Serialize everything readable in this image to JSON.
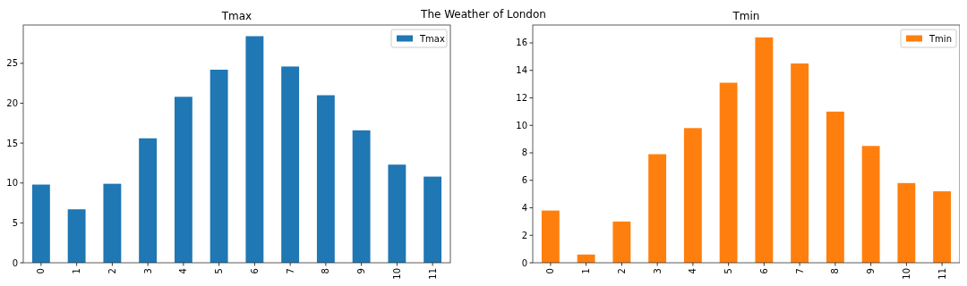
{
  "chart_data": [
    {
      "type": "bar",
      "title": "Tmax",
      "annotations": [
        "The Weather of London"
      ],
      "categories": [
        "0",
        "1",
        "2",
        "3",
        "4",
        "5",
        "6",
        "7",
        "8",
        "9",
        "10",
        "11"
      ],
      "series": [
        {
          "name": "Tmax",
          "color": "#1f77b4",
          "values": [
            9.8,
            6.7,
            9.9,
            15.6,
            20.8,
            24.2,
            28.4,
            24.6,
            21.0,
            16.6,
            12.3,
            10.8
          ]
        }
      ],
      "ylim": [
        0,
        29.8
      ],
      "yticks": [
        0,
        5,
        10,
        15,
        20,
        25
      ],
      "legend": "top right"
    },
    {
      "type": "bar",
      "title": "Tmin",
      "categories": [
        "0",
        "1",
        "2",
        "3",
        "4",
        "5",
        "6",
        "7",
        "8",
        "9",
        "10",
        "11"
      ],
      "series": [
        {
          "name": "Tmin",
          "color": "#ff7f0e",
          "values": [
            3.8,
            0.6,
            3.0,
            7.9,
            9.8,
            13.1,
            16.4,
            14.5,
            11.0,
            8.5,
            5.8,
            5.2
          ]
        }
      ],
      "ylim": [
        0,
        17.3
      ],
      "yticks": [
        0,
        2,
        4,
        6,
        8,
        10,
        12,
        14,
        16
      ],
      "legend": "top right"
    }
  ]
}
